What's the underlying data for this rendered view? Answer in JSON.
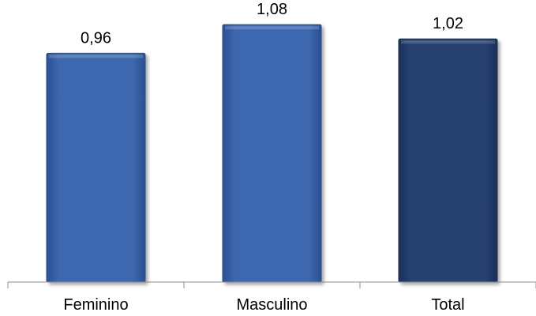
{
  "chart_data": {
    "type": "bar",
    "title": "",
    "xlabel": "",
    "ylabel": "",
    "categories": [
      "Feminino",
      "Masculino",
      "Total"
    ],
    "values": [
      0.96,
      1.08,
      1.02
    ],
    "value_labels": [
      "0,96",
      "1,08",
      "1,02"
    ],
    "ylim": [
      0,
      1.15
    ],
    "grid": false,
    "legend": "none",
    "colors": [
      "#3a64ad",
      "#3a64ad",
      "#233f6e"
    ]
  }
}
